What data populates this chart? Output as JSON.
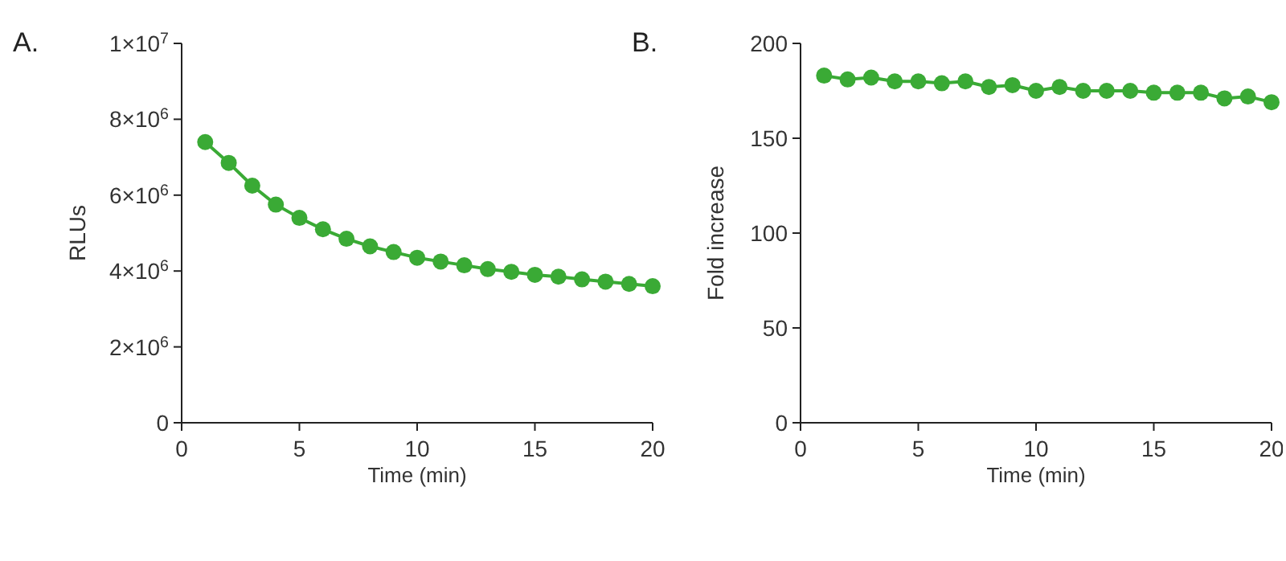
{
  "chart_data": [
    {
      "type": "line",
      "annotations": [
        "A."
      ],
      "xlabel": "Time (min)",
      "ylabel": "RLUs",
      "x": [
        1,
        2,
        3,
        4,
        5,
        6,
        7,
        8,
        9,
        10,
        11,
        12,
        13,
        14,
        15,
        16,
        17,
        18,
        19,
        20
      ],
      "series": [
        {
          "color": "#3aaa35",
          "values": [
            7400000,
            6850000,
            6250000,
            5750000,
            5400000,
            5100000,
            4850000,
            4650000,
            4500000,
            4350000,
            4250000,
            4150000,
            4050000,
            3980000,
            3900000,
            3850000,
            3780000,
            3720000,
            3660000,
            3600000
          ]
        }
      ],
      "xlim": [
        0,
        20
      ],
      "xticks": [
        0,
        5,
        10,
        15,
        20
      ],
      "ylim": [
        0,
        10000000
      ],
      "yticks": [
        0,
        {
          "value": 2000000,
          "label": "2×10$^{6}$"
        },
        {
          "value": 4000000,
          "label": "4×10$^{6}$"
        },
        {
          "value": 6000000,
          "label": "6×10$^{6}$"
        },
        {
          "value": 8000000,
          "label": "8×10$^{6}$"
        },
        {
          "value": 10000000,
          "label": "1×10$^{7}$"
        }
      ],
      "grid": false,
      "marker": "circle"
    },
    {
      "type": "line",
      "annotations": [
        "B."
      ],
      "xlabel": "Time (min)",
      "ylabel": "Fold increase",
      "x": [
        1,
        2,
        3,
        4,
        5,
        6,
        7,
        8,
        9,
        10,
        11,
        12,
        13,
        14,
        15,
        16,
        17,
        18,
        19,
        20
      ],
      "series": [
        {
          "color": "#3aaa35",
          "values": [
            183,
            181,
            182,
            180,
            180,
            179,
            180,
            177,
            178,
            175,
            177,
            175,
            175,
            175,
            174,
            174,
            174,
            171,
            172,
            169
          ]
        }
      ],
      "xlim": [
        0,
        20
      ],
      "xticks": [
        0,
        5,
        10,
        15,
        20
      ],
      "ylim": [
        0,
        200
      ],
      "yticks": [
        0,
        50,
        100,
        150,
        200
      ],
      "grid": false,
      "marker": "circle"
    }
  ]
}
